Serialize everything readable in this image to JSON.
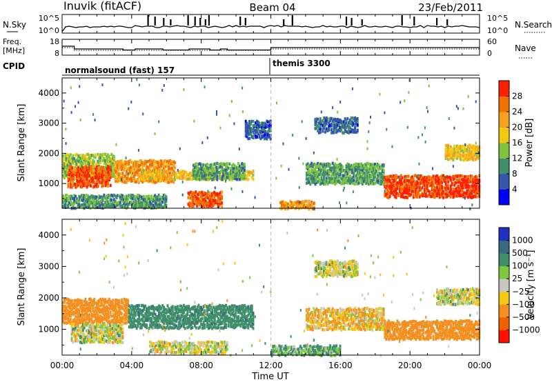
{
  "header": {
    "station": "Inuvik (fitACF)",
    "beam": "Beam 04",
    "date": "23/Feb/2011"
  },
  "top_panels": {
    "nsky_label": "N.Sky",
    "nsky_ticks": [
      "10^5",
      "10^0"
    ],
    "nsearch_label": "N.Search",
    "nsearch_ticks": [
      "10^5",
      "10^0"
    ],
    "freq_label_1": "Freq.",
    "freq_label_2": "[MHz]",
    "freq_ticks": [
      "18",
      "8"
    ],
    "nave_label": "Nave",
    "nave_ticks": [
      "60",
      "0"
    ],
    "cpid_label": "CPID",
    "cpid_segments": [
      {
        "name": "normalsound (fast) 157",
        "start_h": 0
      },
      {
        "name": "themis 3300",
        "start_h": 12
      }
    ]
  },
  "colors": {
    "power_scale": [
      "#0000ff",
      "#3355aa",
      "#3f8f6a",
      "#7ec340",
      "#f2c810",
      "#f5a020",
      "#f07000",
      "#ff2000"
    ],
    "velocity_scale": [
      "#2030c0",
      "#3a6a80",
      "#3f8f6a",
      "#80c840",
      "#c8c8c0",
      "#f2c810",
      "#f59020",
      "#f06000",
      "#ff1000"
    ]
  },
  "chart_data": [
    {
      "type": "heatmap",
      "panel": "power",
      "xlabel": "Time UT",
      "ylabel": "Slant Range [km]",
      "xlim": [
        0,
        24
      ],
      "ylim": [
        180,
        4500
      ],
      "x_tick_labels": [
        "00:00",
        "04:00",
        "08:00",
        "12:00",
        "16:00",
        "20:00",
        "00:00"
      ],
      "y_ticks": [
        1000,
        2000,
        3000,
        4000
      ],
      "colorbar": {
        "label": "Power [dB]",
        "ticks": [
          "28",
          "24",
          "20",
          "16",
          "12",
          "8",
          "4"
        ],
        "range": [
          0,
          30
        ]
      },
      "regions": [
        {
          "t0": 0.0,
          "t1": 3.0,
          "r0": 1200,
          "r1": 2000,
          "value": 14
        },
        {
          "t0": 0.3,
          "t1": 2.8,
          "r0": 900,
          "r1": 1600,
          "value": 26
        },
        {
          "t0": 3.0,
          "t1": 6.5,
          "r0": 1050,
          "r1": 1800,
          "value": 22
        },
        {
          "t0": 4.5,
          "t1": 11.0,
          "r0": 1150,
          "r1": 1450,
          "value": 18
        },
        {
          "t0": 7.5,
          "t1": 10.5,
          "r0": 1150,
          "r1": 1700,
          "value": 10
        },
        {
          "t0": 7.2,
          "t1": 9.2,
          "r0": 250,
          "r1": 750,
          "value": 26
        },
        {
          "t0": 14.0,
          "t1": 18.5,
          "r0": 1000,
          "r1": 1700,
          "value": 11
        },
        {
          "t0": 18.5,
          "t1": 24.0,
          "r0": 550,
          "r1": 1300,
          "value": 27
        },
        {
          "t0": 22.0,
          "t1": 24.0,
          "r0": 1800,
          "r1": 2300,
          "value": 18
        },
        {
          "t0": 14.5,
          "t1": 17.0,
          "r0": 2700,
          "r1": 3200,
          "value": 7
        },
        {
          "t0": 10.5,
          "t1": 12.0,
          "r0": 2500,
          "r1": 3100,
          "value": 6
        },
        {
          "t0": 0.0,
          "t1": 6.0,
          "r0": 200,
          "r1": 650,
          "value": 10
        },
        {
          "t0": 12.5,
          "t1": 14.5,
          "r0": 180,
          "r1": 450,
          "value": 22
        }
      ]
    },
    {
      "type": "heatmap",
      "panel": "velocity",
      "xlabel": "Time UT",
      "ylabel": "Slant Range [km]",
      "xlim": [
        0,
        24
      ],
      "ylim": [
        180,
        4500
      ],
      "x_tick_labels": [
        "00:00",
        "04:00",
        "08:00",
        "12:00",
        "16:00",
        "20:00",
        "00:00"
      ],
      "y_ticks": [
        1000,
        2000,
        3000,
        4000
      ],
      "colorbar": {
        "label": "Velocity [m s⁻¹]",
        "ticks": [
          "1000",
          "500",
          "100",
          "25",
          "−25",
          "−100",
          "−500",
          "−1000"
        ],
        "range": [
          -1000,
          1000
        ]
      },
      "regions": [
        {
          "t0": 0.0,
          "t1": 3.8,
          "r0": 1200,
          "r1": 2000,
          "value": -220
        },
        {
          "t0": 0.5,
          "t1": 3.5,
          "r0": 600,
          "r1": 1200,
          "value": 0
        },
        {
          "t0": 3.8,
          "t1": 11.0,
          "r0": 1050,
          "r1": 1800,
          "value": 400
        },
        {
          "t0": 5.0,
          "t1": 9.5,
          "r0": 250,
          "r1": 650,
          "value": 0
        },
        {
          "t0": 14.0,
          "t1": 18.5,
          "r0": 1000,
          "r1": 1700,
          "value": -80
        },
        {
          "t0": 18.5,
          "t1": 24.0,
          "r0": 700,
          "r1": 1300,
          "value": -250
        },
        {
          "t0": 21.5,
          "t1": 24.0,
          "r0": 1800,
          "r1": 2300,
          "value": 0
        },
        {
          "t0": 14.5,
          "t1": 17.0,
          "r0": 2700,
          "r1": 3200,
          "value": 0
        },
        {
          "t0": 12.0,
          "t1": 16.0,
          "r0": 180,
          "r1": 500,
          "value": 110
        }
      ]
    }
  ]
}
